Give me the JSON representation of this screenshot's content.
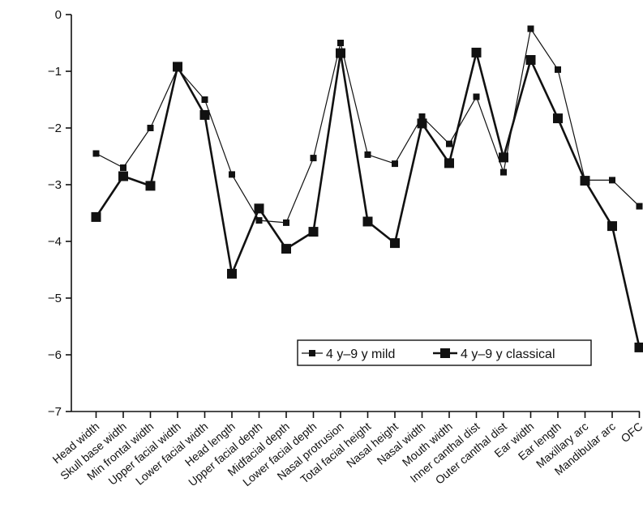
{
  "chart_data": {
    "type": "line",
    "title": "",
    "xlabel": "",
    "ylabel": "",
    "ylim": [
      -7,
      0
    ],
    "yticks": [
      0,
      -1,
      -2,
      -3,
      -4,
      -5,
      -6,
      -7
    ],
    "grid": false,
    "legend_position": "bottom-right",
    "categories": [
      "Head width",
      "Skull base width",
      "Min frontal width",
      "Upper facial width",
      "Lower facial width",
      "Head length",
      "Upper facial depth",
      "Midfacial depth",
      "Lower facial depth",
      "Nasal protrusion",
      "Total facial height",
      "Nasal height",
      "Nasal width",
      "Mouth width",
      "Inner canthal dist",
      "Outer canthal dist",
      "Ear width",
      "Ear length",
      "Maxillary arc",
      "Mandibular arc",
      "OFC"
    ],
    "series": [
      {
        "name": "4 y–9 y mild",
        "color": "#111111",
        "style": "thin",
        "values": [
          -2.45,
          -2.7,
          -2.0,
          -0.95,
          -1.5,
          -2.82,
          -3.63,
          -3.67,
          -2.53,
          -0.5,
          -2.47,
          -2.63,
          -1.8,
          -2.28,
          -1.45,
          -2.78,
          -0.25,
          -0.97,
          -2.92,
          -2.92,
          -3.38
        ]
      },
      {
        "name": "4 y–9 y classical",
        "color": "#111111",
        "style": "thick",
        "values": [
          -3.57,
          -2.85,
          -3.02,
          -0.92,
          -1.77,
          -4.57,
          -3.42,
          -4.13,
          -3.83,
          -0.68,
          -3.65,
          -4.03,
          -1.92,
          -2.62,
          -0.67,
          -2.52,
          -0.8,
          -1.83,
          -2.93,
          -3.73,
          -5.87
        ]
      }
    ]
  }
}
